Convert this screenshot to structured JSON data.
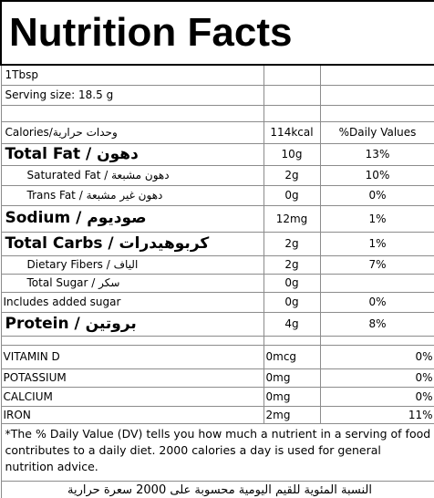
{
  "title": "Nutrition Facts",
  "serving": [
    "1Tbsp",
    "Serving size: 18.5 g"
  ],
  "calories": {
    "label": "Calories/وحدات حرارية",
    "amount": "114kcal",
    "dv": "%Daily Values"
  },
  "nutrients": [
    [
      "Total Fat / دهون",
      "10g",
      "13%"
    ],
    [
      "Saturated Fat / دهون مشبعة",
      "2g",
      "10%"
    ],
    [
      "Trans Fat / دهون غير مشبعة",
      "0g",
      "0%"
    ],
    [
      "Sodium / صوديوم",
      "12mg",
      "1%"
    ],
    [
      "Total Carbs / كربوهيدرات",
      "2g",
      "1%"
    ],
    [
      "Dietary Fibers / الياف",
      "2g",
      "7%"
    ],
    [
      "Total Sugar / سكر",
      "0g"
    ],
    [
      "Includes added sugar",
      "0g",
      "0%"
    ],
    [
      "Protein / بروتين",
      "4g",
      "8%"
    ]
  ],
  "vitamins": [
    [
      "VITAMIN D",
      "0mcg",
      "0%"
    ],
    [
      "POTASSIUM",
      "0mg",
      "0%"
    ],
    [
      "CALCIUM",
      "0mg",
      "0%"
    ],
    [
      "IRON",
      "2mg",
      "11%"
    ]
  ],
  "footnote": "*The % Daily Value (DV) tells you how much a nutrient in a serving of food contributes to a daily diet. 2000 calories a day is used for general nutrition advice.",
  "footnote_ar": "النسبة المئوية للقيم اليومية محسوبة على 2000 سعرة حرارية"
}
